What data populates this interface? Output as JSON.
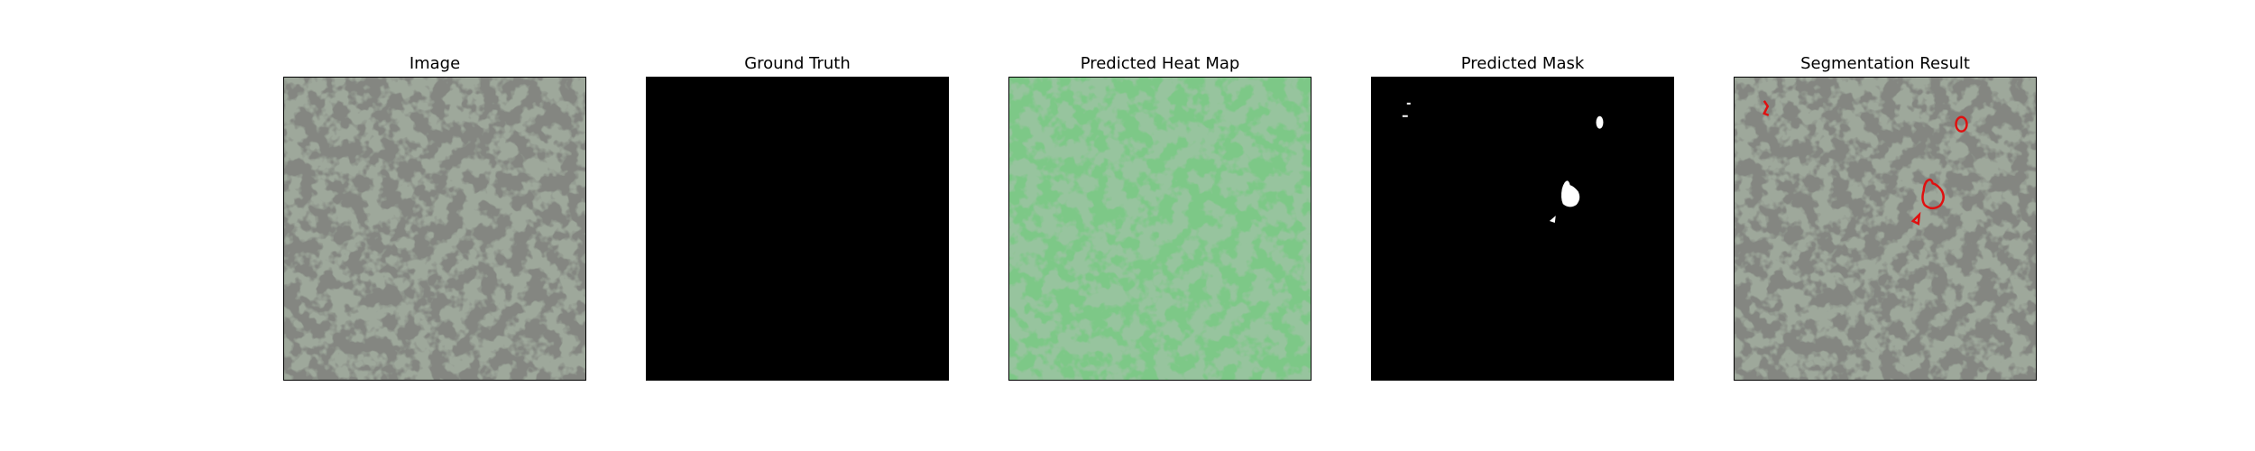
{
  "panels": [
    {
      "title": "Image"
    },
    {
      "title": "Ground Truth"
    },
    {
      "title": "Predicted Heat Map"
    },
    {
      "title": "Predicted Mask"
    },
    {
      "title": "Segmentation Result"
    }
  ],
  "colors": {
    "background": "#ffffff",
    "texture_light": "#9ea89b",
    "texture_dark": "#3a3c38",
    "heatmap_light": "#7dc887",
    "heatmap_dark": "#4e8a55",
    "mask_fill": "#000000",
    "mask_region": "#ffffff",
    "contour": "#e01010"
  }
}
